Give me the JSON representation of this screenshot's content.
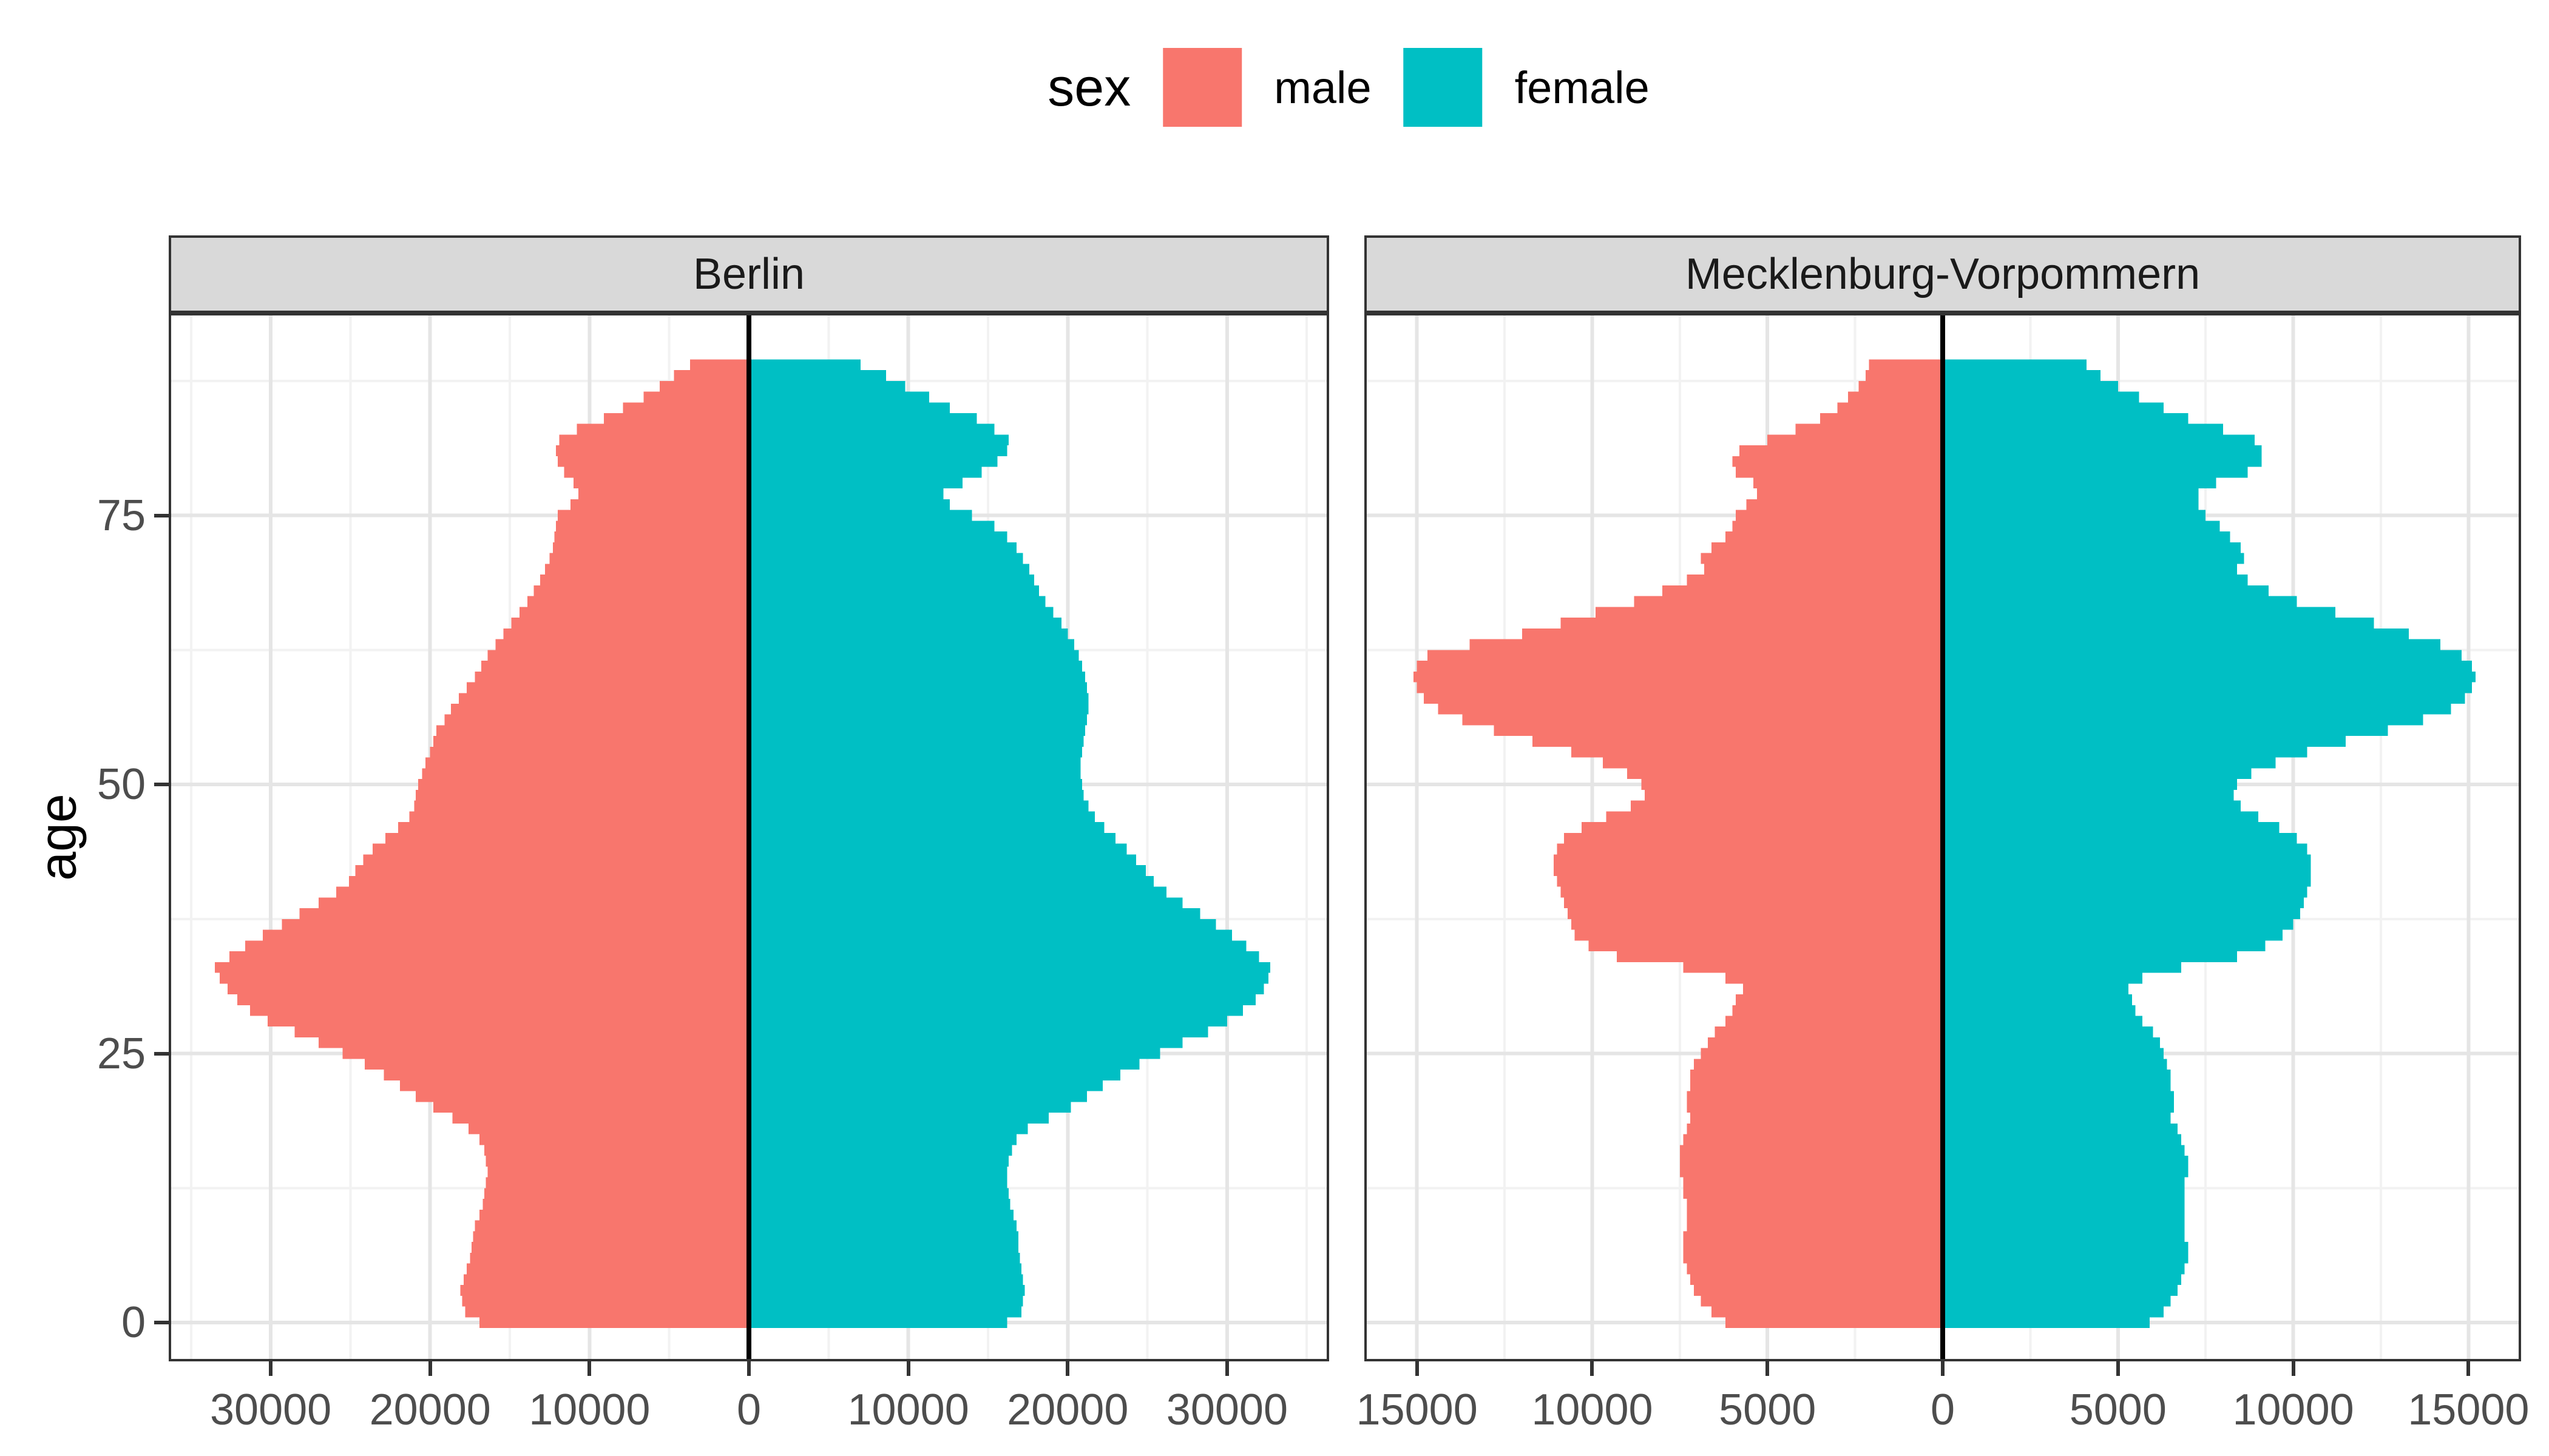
{
  "legend": {
    "title": "sex",
    "entries": [
      {
        "label": "male",
        "color": "#F8766D"
      },
      {
        "label": "female",
        "color": "#00BFC4"
      }
    ]
  },
  "y_axis": {
    "title": "age",
    "ticks": [
      0,
      25,
      50,
      75
    ],
    "tick_labels": [
      "0",
      "25",
      "50",
      "75"
    ],
    "minor_ticks": [
      12.5,
      37.5,
      62.5,
      87.5
    ],
    "range": [
      -3.6,
      93.8
    ]
  },
  "style": {
    "male_color": "#F8766D",
    "female_color": "#00BFC4",
    "strip_fill": "#D9D9D9",
    "strip_text": "#1A1A1A",
    "panel_background": "#FFFFFF",
    "grid_major": "#E5E5E5",
    "grid_minor": "#F2F2F2",
    "panel_border": "#333333",
    "tick_mark": "#333333",
    "axis_text": "#4D4D4D",
    "zero_line": "#000000"
  },
  "chart_data": {
    "type": "bar",
    "subtype": "population-pyramid",
    "orientation": "horizontal",
    "legend_title": "sex",
    "series_names": [
      "male",
      "female"
    ],
    "ylabel": "age",
    "age_min": 0,
    "age_max": 89,
    "bar_width_years": 1,
    "grid": true,
    "legend_position": "top",
    "panels": [
      {
        "title": "Berlin",
        "x_range": [
          -36400,
          36400
        ],
        "x_ticks": [
          -30000,
          -20000,
          -10000,
          0,
          10000,
          20000,
          30000
        ],
        "x_tick_labels": [
          "30000",
          "20000",
          "10000",
          "0",
          "10000",
          "20000",
          "30000"
        ],
        "x_minor_ticks": [
          -35000,
          -25000,
          -15000,
          -5000,
          5000,
          15000,
          25000,
          35000
        ],
        "male": [
          16900,
          17800,
          18000,
          18100,
          17900,
          17700,
          17500,
          17400,
          17300,
          17200,
          16900,
          16700,
          16600,
          16500,
          16400,
          16500,
          16600,
          16900,
          17600,
          18600,
          19800,
          20900,
          21900,
          22900,
          24100,
          25500,
          27000,
          28500,
          30200,
          31300,
          32100,
          32700,
          33200,
          33500,
          32600,
          31600,
          30500,
          29300,
          28200,
          27000,
          25900,
          25100,
          24700,
          24200,
          23600,
          22800,
          22000,
          21300,
          21000,
          20900,
          20750,
          20500,
          20300,
          20000,
          19800,
          19600,
          19100,
          18700,
          18200,
          17700,
          17200,
          16800,
          16400,
          15900,
          15400,
          14900,
          14400,
          13900,
          13500,
          13100,
          12800,
          12500,
          12300,
          12200,
          12100,
          12000,
          11200,
          10700,
          11000,
          11600,
          12000,
          12100,
          11900,
          10800,
          9100,
          7900,
          6600,
          5600,
          4700,
          3700
        ],
        "female": [
          16200,
          17100,
          17200,
          17300,
          17200,
          17100,
          17000,
          16900,
          16900,
          16800,
          16600,
          16400,
          16300,
          16200,
          16200,
          16300,
          16500,
          16800,
          17500,
          18800,
          20200,
          21200,
          22200,
          23300,
          24500,
          25800,
          27200,
          28800,
          30000,
          31000,
          31800,
          32300,
          32600,
          32700,
          32000,
          31200,
          30300,
          29300,
          28300,
          27200,
          26200,
          25400,
          24900,
          24300,
          23700,
          23000,
          22300,
          21700,
          21300,
          21000,
          20900,
          20800,
          20800,
          20900,
          21000,
          21100,
          21200,
          21300,
          21300,
          21200,
          21100,
          20900,
          20700,
          20400,
          20000,
          19600,
          19100,
          18600,
          18200,
          17900,
          17600,
          17200,
          16800,
          16200,
          15400,
          14000,
          12600,
          12200,
          13400,
          14600,
          15600,
          16200,
          16300,
          15400,
          14300,
          12600,
          11300,
          9800,
          8600,
          7000
        ]
      },
      {
        "title": "Mecklenburg-Vorpommern",
        "x_range": [
          -16500,
          16500
        ],
        "x_ticks": [
          -15000,
          -10000,
          -5000,
          0,
          5000,
          10000,
          15000
        ],
        "x_tick_labels": [
          "15000",
          "10000",
          "5000",
          "0",
          "5000",
          "10000",
          "15000"
        ],
        "x_minor_ticks": [
          -12500,
          -7500,
          -2500,
          2500,
          7500,
          12500
        ],
        "male": [
          6200,
          6600,
          6900,
          7100,
          7200,
          7300,
          7400,
          7400,
          7400,
          7300,
          7300,
          7300,
          7400,
          7400,
          7500,
          7500,
          7500,
          7400,
          7300,
          7200,
          7300,
          7300,
          7200,
          7200,
          7100,
          6900,
          6700,
          6500,
          6200,
          6000,
          5900,
          5700,
          6200,
          7400,
          9300,
          10100,
          10500,
          10600,
          10700,
          10800,
          10900,
          11000,
          11100,
          11100,
          11000,
          10800,
          10300,
          9600,
          8900,
          8500,
          8600,
          9000,
          9700,
          10600,
          11700,
          12800,
          13700,
          14400,
          14800,
          15000,
          15100,
          15000,
          14700,
          13500,
          12000,
          10900,
          9900,
          8800,
          8000,
          7300,
          6800,
          6900,
          6600,
          6200,
          6000,
          5900,
          5600,
          5300,
          5400,
          5900,
          6000,
          5800,
          5000,
          4200,
          3500,
          3000,
          2700,
          2400,
          2200,
          2100
        ],
        "female": [
          5900,
          6300,
          6500,
          6700,
          6800,
          6900,
          7000,
          7000,
          6900,
          6900,
          6900,
          6900,
          6900,
          6900,
          7000,
          7000,
          6900,
          6800,
          6700,
          6500,
          6600,
          6600,
          6500,
          6500,
          6400,
          6300,
          6200,
          6000,
          5700,
          5500,
          5400,
          5300,
          5700,
          6800,
          8400,
          9200,
          9700,
          10000,
          10200,
          10300,
          10400,
          10500,
          10500,
          10500,
          10400,
          10100,
          9600,
          9000,
          8500,
          8300,
          8400,
          8800,
          9500,
          10400,
          11500,
          12700,
          13700,
          14500,
          14900,
          15100,
          15200,
          15100,
          14800,
          14200,
          13300,
          12300,
          11200,
          10100,
          9300,
          8700,
          8400,
          8600,
          8500,
          8200,
          7900,
          7500,
          7300,
          7300,
          7800,
          8700,
          9100,
          9100,
          8900,
          8000,
          7000,
          6300,
          5600,
          5000,
          4500,
          4100
        ]
      }
    ]
  }
}
